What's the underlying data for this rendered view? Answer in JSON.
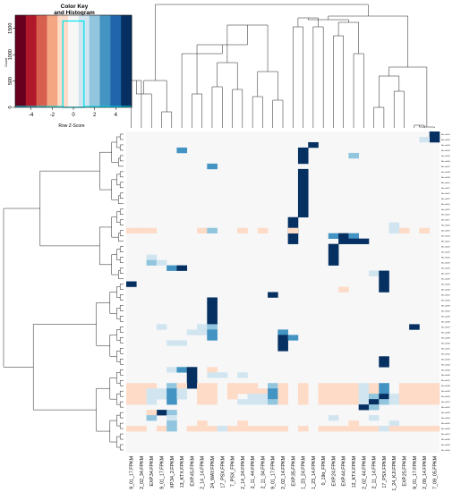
{
  "chart_data": {
    "type": "heatmap",
    "color_key": {
      "title_line1": "Color Key",
      "title_line2": "and Histogram",
      "xlabel": "Row Z-Score",
      "ylabel": "Count",
      "x_ticks": [
        "-4",
        "-2",
        "0",
        "2",
        "4"
      ],
      "y_ticks": [
        "0",
        "500",
        "1000",
        "1500"
      ],
      "xlim": [
        -5.5,
        5.5
      ],
      "ylim": [
        0,
        1750
      ],
      "colors": [
        "#67001f",
        "#b2182b",
        "#d6604d",
        "#f4a582",
        "#fddbc7",
        "#f7f7f7",
        "#d1e5f0",
        "#92c5de",
        "#4393c3",
        "#2166ac",
        "#053061"
      ],
      "histogram_bins": [
        {
          "from": -1,
          "to": 1,
          "count": 1640
        }
      ]
    },
    "column_labels": [
      "9_01_17.FPKM",
      "2_02_34.FPKM",
      "EXP.34.FPKM",
      "9_01_17.FPKM",
      "XP.34_2.FPKM",
      "13_KTX.FPKM",
      "EXP.45.FPKM",
      "2_14_14.FPKM",
      "24_WAY.FPKM",
      "17_PSX.FPKM",
      "7_PSX_FPKM",
      "2_14_24.FPKM",
      "2_11_44.FPKM",
      "2_11_34.FPKM",
      "9_01_17.FPKM",
      "2_02_14.FPKM",
      "EXP.35.FPKM",
      "1_23_24.FPKM",
      "1_23_14.FPKM",
      "0_19o_FPKM",
      "EXP.24.FPKM",
      "EXP.44.FPKM",
      "12_KTX.FPKM",
      "2_02_44.FPKM",
      "2_11_14.FPKM",
      "17_PSX.FPKM",
      "1_24_KJI.FPKM",
      "EXP.25.FPKM",
      "9_01_17.FPKM",
      "2_09_14.FPKM",
      "7_09_05.FPKM"
    ],
    "row_labels": [
      "Bhcsd001",
      "Bhcsd002",
      "Bhcsd003",
      "Bhcsd004",
      "Bhcsd005",
      "Bhcsd006",
      "Bhcsd007",
      "Bhcsd008",
      "Bhcsd009",
      "Bhcsd010",
      "Bhcsd011",
      "Bhcsd012",
      "Bhcsd013",
      "Bhcsd014",
      "Bhcsd015",
      "Bhcsd016",
      "Bhcsd017",
      "Bhcsd018",
      "Bhcsd019",
      "Bhcsd020",
      "Bhcsd021",
      "Bhcsd022",
      "Bhcsd023",
      "Bhcsd024",
      "Bhcsd025",
      "Bhcsd026",
      "Bhcsd027",
      "Bhcsd028",
      "Bhcsd029",
      "Bhcsd030",
      "Bhcsd031",
      "Bhcsd032",
      "Bhcsd033",
      "Bhcsd034",
      "Bhcsd035",
      "Bhcsd036",
      "Bhcsd037",
      "Bhcsd038",
      "Bhcsd039",
      "Bhcsd040",
      "Bhcsd041",
      "Bhcsd042",
      "Bhcsd043",
      "Bhcsd044",
      "Bhcsd045",
      "Bhcsd046",
      "Bhcsd047",
      "Bhcsd048",
      "Bhcsd049",
      "Bhcsd050",
      "Bhcsd051",
      "Bhcsd052",
      "Bhcsd053",
      "Bhcsd054",
      "Bhcsd055",
      "Bhcsd056",
      "Bhcsd057",
      "Bhcsd058",
      "Bhcsd059",
      "Bhcsd060"
    ],
    "zero_value": -0.3,
    "cells": [
      [
        0,
        30,
        5.5
      ],
      [
        1,
        30,
        5.5
      ],
      [
        1,
        29,
        1
      ],
      [
        2,
        18,
        5.5
      ],
      [
        3,
        5,
        3
      ],
      [
        3,
        17,
        5.5
      ],
      [
        4,
        17,
        5.5
      ],
      [
        4,
        22,
        2
      ],
      [
        5,
        17,
        5.5
      ],
      [
        6,
        8,
        3
      ],
      [
        7,
        17,
        5.5
      ],
      [
        8,
        17,
        5.5
      ],
      [
        9,
        17,
        5.5
      ],
      [
        10,
        17,
        5.5
      ],
      [
        11,
        17,
        5.5
      ],
      [
        12,
        17,
        5.5
      ],
      [
        13,
        17,
        5.5
      ],
      [
        14,
        17,
        5.5
      ],
      [
        15,
        17,
        5.5
      ],
      [
        16,
        16,
        5.5
      ],
      [
        17,
        16,
        5.5
      ],
      [
        18,
        16,
        5.5
      ],
      [
        19,
        16,
        5.5
      ],
      [
        20,
        16,
        5.5
      ],
      [
        18,
        0,
        -1.3
      ],
      [
        18,
        1,
        -1.3
      ],
      [
        18,
        2,
        -1.3
      ],
      [
        18,
        7,
        -1.3
      ],
      [
        18,
        11,
        -1.3
      ],
      [
        18,
        13,
        -1.3
      ],
      [
        18,
        8,
        2
      ],
      [
        18,
        16,
        -1.3
      ],
      [
        18,
        27,
        -1.3
      ],
      [
        18,
        29,
        -1.3
      ],
      [
        18,
        26,
        1
      ],
      [
        17,
        26,
        1
      ],
      [
        19,
        20,
        3
      ],
      [
        19,
        21,
        5.5
      ],
      [
        19,
        22,
        3
      ],
      [
        20,
        21,
        5.5
      ],
      [
        20,
        22,
        5.5
      ],
      [
        20,
        23,
        5.5
      ],
      [
        21,
        20,
        5.5
      ],
      [
        22,
        20,
        5.5
      ],
      [
        23,
        20,
        5.5
      ],
      [
        24,
        20,
        5.5
      ],
      [
        23,
        2,
        1
      ],
      [
        24,
        2,
        2
      ],
      [
        24,
        3,
        1
      ],
      [
        25,
        4,
        3
      ],
      [
        25,
        5,
        5.5
      ],
      [
        26,
        24,
        1
      ],
      [
        26,
        25,
        5.5
      ],
      [
        27,
        25,
        5.5
      ],
      [
        28,
        25,
        5.5
      ],
      [
        29,
        25,
        5.5
      ],
      [
        28,
        0,
        5.5
      ],
      [
        29,
        21,
        -1.3
      ],
      [
        30,
        14,
        5.5
      ],
      [
        31,
        8,
        5.5
      ],
      [
        32,
        8,
        5.5
      ],
      [
        33,
        8,
        5.5
      ],
      [
        34,
        8,
        5.5
      ],
      [
        35,
        8,
        5.5
      ],
      [
        36,
        3,
        1
      ],
      [
        36,
        7,
        1
      ],
      [
        36,
        8,
        2
      ],
      [
        36,
        28,
        5.5
      ],
      [
        37,
        6,
        1
      ],
      [
        37,
        7,
        1
      ],
      [
        37,
        8,
        3
      ],
      [
        37,
        15,
        3
      ],
      [
        38,
        8,
        3
      ],
      [
        38,
        15,
        5.5
      ],
      [
        38,
        16,
        3
      ],
      [
        39,
        15,
        5.5
      ],
      [
        40,
        15,
        5.5
      ],
      [
        39,
        4,
        1
      ],
      [
        39,
        5,
        1
      ],
      [
        42,
        25,
        5.5
      ],
      [
        43,
        25,
        5.5
      ],
      [
        44,
        4,
        1
      ],
      [
        44,
        5,
        3
      ],
      [
        44,
        6,
        5.5
      ],
      [
        44,
        8,
        -1.3
      ],
      [
        45,
        6,
        5.5
      ],
      [
        46,
        6,
        5.5
      ],
      [
        47,
        6,
        5.5
      ],
      [
        45,
        8,
        1
      ],
      [
        45,
        9,
        1
      ],
      [
        45,
        11,
        1
      ],
      [
        47,
        4,
        2
      ],
      [
        47,
        0,
        -1.3
      ],
      [
        47,
        1,
        -1.3
      ],
      [
        47,
        2,
        -1.3
      ],
      [
        47,
        5,
        -1.3
      ],
      [
        47,
        7,
        -1.3
      ],
      [
        47,
        8,
        -1.3
      ],
      [
        47,
        10,
        -1.3
      ],
      [
        47,
        11,
        -1.3
      ],
      [
        47,
        12,
        -1.3
      ],
      [
        47,
        14,
        2
      ],
      [
        47,
        15,
        -1.3
      ],
      [
        47,
        17,
        -1.3
      ],
      [
        47,
        19,
        -1.3
      ],
      [
        47,
        20,
        -1.3
      ],
      [
        47,
        21,
        -1.3
      ],
      [
        47,
        22,
        -1.3
      ],
      [
        47,
        23,
        1
      ],
      [
        47,
        24,
        -1.3
      ],
      [
        47,
        25,
        3
      ],
      [
        47,
        27,
        -1.3
      ],
      [
        47,
        28,
        -1.3
      ],
      [
        47,
        29,
        -1.3
      ],
      [
        47,
        30,
        -1.3
      ],
      [
        48,
        0,
        -1.3
      ],
      [
        48,
        1,
        -1.3
      ],
      [
        48,
        2,
        1
      ],
      [
        48,
        3,
        1
      ],
      [
        48,
        4,
        3
      ],
      [
        48,
        5,
        1
      ],
      [
        48,
        7,
        -1.3
      ],
      [
        48,
        8,
        -1.3
      ],
      [
        48,
        10,
        -1.3
      ],
      [
        48,
        11,
        -1.3
      ],
      [
        48,
        12,
        -1.3
      ],
      [
        48,
        13,
        -1.3
      ],
      [
        48,
        14,
        3
      ],
      [
        48,
        15,
        -1.3
      ],
      [
        48,
        17,
        -1.3
      ],
      [
        48,
        19,
        -1.3
      ],
      [
        48,
        20,
        -1.3
      ],
      [
        48,
        21,
        -1.3
      ],
      [
        48,
        22,
        -1.3
      ],
      [
        48,
        23,
        1
      ],
      [
        48,
        24,
        -1.3
      ],
      [
        48,
        25,
        3
      ],
      [
        48,
        27,
        -1.3
      ],
      [
        48,
        28,
        -1.3
      ],
      [
        48,
        29,
        -1.3
      ],
      [
        48,
        30,
        -1.3
      ],
      [
        49,
        0,
        -1.3
      ],
      [
        49,
        1,
        -1.3
      ],
      [
        49,
        2,
        1
      ],
      [
        49,
        3,
        1
      ],
      [
        49,
        4,
        3
      ],
      [
        49,
        5,
        1
      ],
      [
        49,
        7,
        -1.3
      ],
      [
        49,
        8,
        -1.3
      ],
      [
        49,
        10,
        -1.3
      ],
      [
        49,
        12,
        1
      ],
      [
        49,
        13,
        1
      ],
      [
        49,
        14,
        3
      ],
      [
        49,
        15,
        -1.3
      ],
      [
        49,
        17,
        -1.3
      ],
      [
        49,
        19,
        -1.3
      ],
      [
        49,
        20,
        -1.3
      ],
      [
        49,
        21,
        -1.3
      ],
      [
        49,
        22,
        -1.3
      ],
      [
        49,
        23,
        1
      ],
      [
        49,
        24,
        2
      ],
      [
        49,
        25,
        5.5
      ],
      [
        49,
        26,
        1
      ],
      [
        49,
        27,
        -1.3
      ],
      [
        49,
        28,
        -1.3
      ],
      [
        49,
        29,
        -1.3
      ],
      [
        49,
        30,
        -1.3
      ],
      [
        50,
        0,
        -1.3
      ],
      [
        50,
        1,
        -1.3
      ],
      [
        50,
        2,
        1
      ],
      [
        50,
        4,
        3
      ],
      [
        50,
        7,
        -1.3
      ],
      [
        50,
        8,
        -1.3
      ],
      [
        50,
        11,
        1
      ],
      [
        50,
        12,
        1
      ],
      [
        50,
        13,
        1
      ],
      [
        50,
        14,
        2
      ],
      [
        50,
        15,
        -1.3
      ],
      [
        50,
        17,
        -1.3
      ],
      [
        50,
        19,
        -1.3
      ],
      [
        50,
        20,
        -1.3
      ],
      [
        50,
        21,
        -1.3
      ],
      [
        50,
        22,
        -1.3
      ],
      [
        50,
        23,
        1
      ],
      [
        50,
        24,
        5.5
      ],
      [
        50,
        25,
        2
      ],
      [
        50,
        26,
        1
      ],
      [
        50,
        27,
        -1.3
      ],
      [
        50,
        28,
        -1.3
      ],
      [
        50,
        29,
        -1.3
      ],
      [
        50,
        30,
        -1.3
      ],
      [
        51,
        23,
        5.5
      ],
      [
        51,
        24,
        2
      ],
      [
        52,
        3,
        5.5
      ],
      [
        52,
        4,
        2
      ],
      [
        52,
        2,
        -1.3
      ],
      [
        53,
        2,
        2
      ],
      [
        53,
        4,
        1
      ],
      [
        53,
        20,
        1
      ],
      [
        53,
        24,
        1
      ],
      [
        54,
        4,
        2
      ],
      [
        54,
        7,
        -1.3
      ],
      [
        54,
        11,
        -1.3
      ],
      [
        54,
        22,
        -1.3
      ],
      [
        54,
        26,
        1
      ],
      [
        55,
        0,
        -1.3
      ],
      [
        55,
        1,
        -1.3
      ],
      [
        55,
        3,
        -1.3
      ],
      [
        55,
        4,
        2
      ],
      [
        55,
        6,
        -1.3
      ],
      [
        55,
        7,
        -1.3
      ],
      [
        55,
        8,
        -1.3
      ],
      [
        55,
        9,
        1
      ],
      [
        55,
        10,
        -1.3
      ],
      [
        55,
        11,
        -1.3
      ],
      [
        55,
        12,
        -1.3
      ],
      [
        55,
        13,
        -1.3
      ],
      [
        55,
        14,
        -1.3
      ],
      [
        55,
        15,
        -1.3
      ],
      [
        55,
        17,
        -1.3
      ],
      [
        55,
        19,
        -1.3
      ],
      [
        55,
        20,
        -1.3
      ],
      [
        55,
        21,
        -1.3
      ],
      [
        55,
        22,
        -1.3
      ],
      [
        55,
        23,
        -1.3
      ],
      [
        55,
        24,
        -1.3
      ],
      [
        55,
        25,
        1
      ],
      [
        55,
        26,
        -1.3
      ],
      [
        55,
        27,
        -1.3
      ],
      [
        55,
        28,
        -1.3
      ],
      [
        55,
        29,
        -1.3
      ],
      [
        55,
        30,
        -1.3
      ]
    ]
  }
}
